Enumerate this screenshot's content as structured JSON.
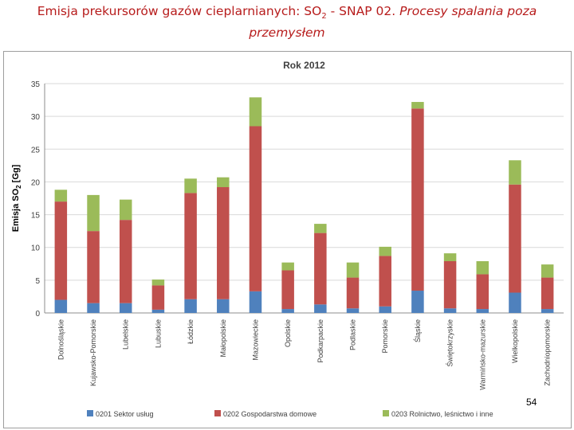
{
  "slide": {
    "title_part1": "Emisja prekursorów gazów cieplarnianych:  SO",
    "title_sub": "2",
    "title_part2": " - SNAP 02. ",
    "title_italic1": "Procesy spalania poza",
    "title_italic2": "przemysłem",
    "page_number": "54"
  },
  "colors": {
    "title": "#b71c1c",
    "series": [
      "#4f81bd",
      "#c0504d",
      "#9bbb59"
    ]
  },
  "chart_data": {
    "type": "bar",
    "stacked": true,
    "title": "Rok 2012",
    "ylabel": "Emisja SO",
    "ylabel_sub": "2",
    "ylabel_unit": " [Gg]",
    "xlabel": "",
    "ylim": [
      0,
      35
    ],
    "yticks": [
      0,
      5,
      10,
      15,
      20,
      25,
      30,
      35
    ],
    "grid": true,
    "legend_position": "bottom",
    "categories": [
      "Dolnośląskie",
      "Kujawsko-Pomorskie",
      "Lubelskie",
      "Lubuskie",
      "Łódzkie",
      "Małopolskie",
      "Mazowieckie",
      "Opolskie",
      "Podkarpackie",
      "Podlaskie",
      "Pomorskie",
      "Śląskie",
      "Świętokrzyskie",
      "Warmińsko-mazurskie",
      "Wielkopolskie",
      "Zachodniopomorskie"
    ],
    "series": [
      {
        "name": "0201 Sektor usług",
        "values": [
          2.0,
          1.5,
          1.5,
          0.5,
          2.1,
          2.1,
          3.3,
          0.6,
          1.3,
          0.7,
          1.0,
          3.4,
          0.7,
          0.6,
          3.1,
          0.6
        ]
      },
      {
        "name": "0202  Gospodarstwa domowe",
        "values": [
          15.0,
          11.0,
          12.7,
          3.7,
          16.2,
          17.1,
          25.2,
          5.9,
          10.9,
          4.7,
          7.7,
          27.8,
          7.2,
          5.3,
          16.5,
          4.8
        ]
      },
      {
        "name": "0203  Rolnictwo, leśnictwo i inne",
        "values": [
          1.8,
          5.5,
          3.1,
          0.9,
          2.2,
          1.5,
          4.4,
          1.2,
          1.4,
          2.3,
          1.4,
          1.0,
          1.2,
          2.0,
          3.7,
          2.0
        ]
      }
    ]
  }
}
